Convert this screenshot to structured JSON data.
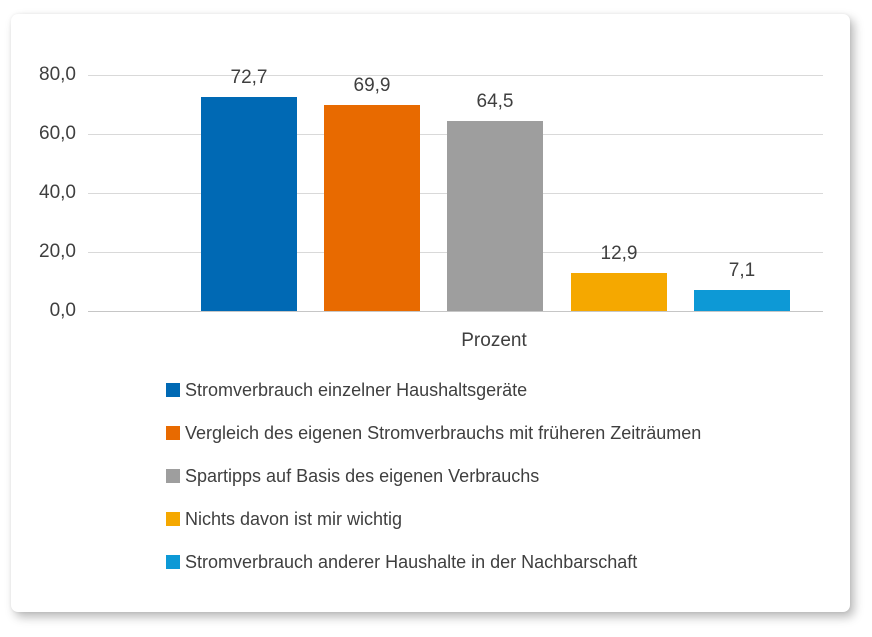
{
  "chart_data": {
    "type": "bar",
    "title": "",
    "xlabel": "Prozent",
    "ylabel": "",
    "categories": [
      "Prozent"
    ],
    "ylim": [
      0,
      80
    ],
    "grid": true,
    "legend_position": "bottom",
    "yticks": [
      {
        "value": 0,
        "label": "0,0"
      },
      {
        "value": 20,
        "label": "20,0"
      },
      {
        "value": 40,
        "label": "40,0"
      },
      {
        "value": 60,
        "label": "60,0"
      },
      {
        "value": 80,
        "label": "80,0"
      }
    ],
    "series": [
      {
        "name": "Stromverbrauch einzelner Haushaltsgeräte",
        "value": 72.7,
        "display": "72,7",
        "color": "#0069B4"
      },
      {
        "name": "Vergleich des eigenen Stromverbrauchs mit früheren Zeiträumen",
        "value": 69.9,
        "display": "69,9",
        "color": "#E86A00"
      },
      {
        "name": "Spartipps auf Basis des eigenen Verbrauchs",
        "value": 64.5,
        "display": "64,5",
        "color": "#9E9E9E"
      },
      {
        "name": "Nichts davon ist mir wichtig",
        "value": 12.9,
        "display": "12,9",
        "color": "#F5A800"
      },
      {
        "name": "Stromverbrauch anderer Haushalte in der Nachbarschaft",
        "value": 7.1,
        "display": "7,1",
        "color": "#0D99D6"
      }
    ],
    "colors": {
      "grid": "#D9D9D9",
      "axis": "#C6C6C6",
      "text": "#3F3F3F"
    }
  }
}
